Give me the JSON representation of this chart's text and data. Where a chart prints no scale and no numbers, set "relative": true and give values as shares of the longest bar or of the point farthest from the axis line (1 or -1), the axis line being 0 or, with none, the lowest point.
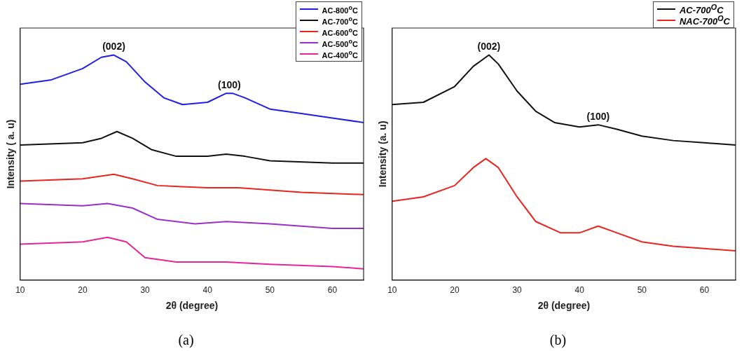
{
  "chart_data": [
    {
      "type": "line",
      "relative": true,
      "xlabel": "2θ (degree)",
      "ylabel": "Intensity ( a. u)",
      "xlim": [
        10,
        65
      ],
      "xticks": [
        10,
        20,
        30,
        40,
        50,
        60
      ],
      "grid": false,
      "legend": "top right",
      "marker": "none",
      "line_style": "solid",
      "annotations": [
        {
          "text": "(002)",
          "x": 25,
          "y": 1.0
        },
        {
          "text": "(100)",
          "x": 43.5,
          "y": 0.83
        },
        "(a)"
      ],
      "series": [
        {
          "name": "AC-800$^{o}$C",
          "color": "#1f1fe6",
          "x": [
            10,
            15,
            20,
            23,
            25,
            27,
            30,
            33,
            36,
            40,
            43,
            44,
            46,
            50,
            55,
            60,
            65
          ],
          "values": [
            0.87,
            0.89,
            0.94,
            0.99,
            1.0,
            0.97,
            0.88,
            0.81,
            0.78,
            0.79,
            0.83,
            0.83,
            0.81,
            0.76,
            0.74,
            0.72,
            0.7
          ]
        },
        {
          "name": "AC-700$^{o}$C",
          "color": "#111111",
          "x": [
            10,
            20,
            23,
            25.5,
            28,
            31,
            35,
            40,
            43,
            46,
            50,
            60,
            65
          ],
          "values": [
            0.6,
            0.61,
            0.63,
            0.66,
            0.63,
            0.58,
            0.55,
            0.55,
            0.56,
            0.55,
            0.53,
            0.52,
            0.52
          ]
        },
        {
          "name": "AC-600$^{o}$C",
          "color": "#e8251f",
          "x": [
            10,
            20,
            25,
            28,
            32,
            40,
            45,
            55,
            65
          ],
          "values": [
            0.44,
            0.45,
            0.47,
            0.45,
            0.42,
            0.41,
            0.41,
            0.39,
            0.38
          ]
        },
        {
          "name": "AC-500$^{o}$C",
          "color": "#9b30c8",
          "x": [
            10,
            20,
            24,
            28,
            32,
            38,
            43,
            50,
            60,
            65
          ],
          "values": [
            0.34,
            0.33,
            0.34,
            0.32,
            0.27,
            0.25,
            0.26,
            0.25,
            0.23,
            0.23
          ]
        },
        {
          "name": "AC-400$^{o}$C",
          "color": "#e6259a",
          "x": [
            10,
            20,
            24,
            27,
            30,
            35,
            43,
            50,
            60,
            65
          ],
          "values": [
            0.16,
            0.17,
            0.19,
            0.17,
            0.1,
            0.08,
            0.08,
            0.07,
            0.06,
            0.05
          ]
        }
      ]
    },
    {
      "type": "line",
      "relative": true,
      "xlabel": "2θ (degree)",
      "ylabel": "Intensity (a. u)",
      "xlim": [
        10,
        65
      ],
      "xticks": [
        10,
        20,
        30,
        40,
        50,
        60
      ],
      "grid": false,
      "legend": "top right",
      "marker": "none",
      "line_style": "solid",
      "annotations": [
        {
          "text": "(002)",
          "x": 25.5,
          "y": 1.0
        },
        {
          "text": "(100)",
          "x": 43,
          "y": 0.69
        },
        "(b)"
      ],
      "series": [
        {
          "name": "AC-700$^{O}$C",
          "color": "#111111",
          "x": [
            10,
            15,
            20,
            23,
            25.5,
            27,
            30,
            33,
            36,
            40,
            43,
            46,
            50,
            55,
            60,
            65
          ],
          "values": [
            0.78,
            0.79,
            0.86,
            0.95,
            1.0,
            0.96,
            0.84,
            0.75,
            0.7,
            0.68,
            0.69,
            0.67,
            0.64,
            0.62,
            0.61,
            0.6
          ]
        },
        {
          "name": "NAC-700$^{O}$C",
          "color": "#e8251f",
          "x": [
            10,
            15,
            20,
            23,
            25,
            27,
            30,
            33,
            37,
            40,
            43,
            46,
            50,
            55,
            60,
            65
          ],
          "values": [
            0.35,
            0.37,
            0.42,
            0.5,
            0.54,
            0.5,
            0.37,
            0.26,
            0.21,
            0.21,
            0.24,
            0.21,
            0.17,
            0.15,
            0.14,
            0.13
          ]
        }
      ]
    }
  ]
}
